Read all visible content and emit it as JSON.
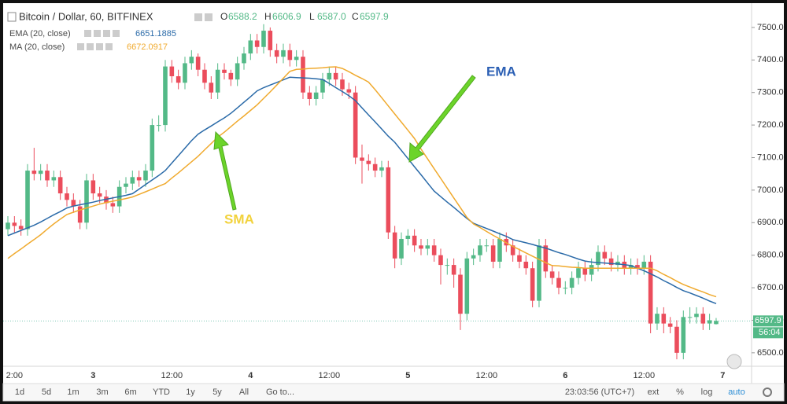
{
  "header": {
    "title": "Bitcoin / Dollar, 60, BITFINEX",
    "ohlc": [
      [
        "O",
        "6588.2"
      ],
      [
        "H",
        "6606.9"
      ],
      [
        "L",
        "6587.0"
      ],
      [
        "C",
        "6597.9"
      ]
    ]
  },
  "chart_data": {
    "type": "candlestick",
    "categories": [
      null,
      "2:00",
      null,
      null,
      null,
      null,
      null,
      null,
      null,
      null,
      null,
      null,
      null,
      "3",
      null,
      null,
      null,
      null,
      null,
      null,
      null,
      null,
      null,
      null,
      null,
      "12:00",
      null,
      null,
      null,
      null,
      null,
      null,
      null,
      null,
      null,
      null,
      null,
      "4",
      null,
      null,
      null,
      null,
      null,
      null,
      null,
      null,
      null,
      null,
      null,
      "12:00",
      null,
      null,
      null,
      null,
      null,
      null,
      null,
      null,
      null,
      null,
      null,
      "5",
      null,
      null,
      null,
      null,
      null,
      null,
      null,
      null,
      null,
      null,
      null,
      "12:00",
      null,
      null,
      null,
      null,
      null,
      null,
      null,
      null,
      null,
      null,
      null,
      "6",
      null,
      null,
      null,
      null,
      null,
      null,
      null,
      null,
      null,
      null,
      null,
      "12:00",
      null,
      null,
      null,
      null,
      null,
      null,
      null,
      null,
      null,
      null,
      null,
      "7"
    ],
    "open": [
      6880,
      6900,
      6890,
      6880,
      7060,
      7050,
      7060,
      7030,
      7040,
      6990,
      6970,
      6950,
      6900,
      7030,
      6990,
      6980,
      6960,
      6950,
      7010,
      7020,
      7040,
      7030,
      7060,
      7200,
      7200,
      7380,
      7350,
      7330,
      7390,
      7410,
      7370,
      7330,
      7300,
      7370,
      7360,
      7340,
      7390,
      7420,
      7460,
      7440,
      7490,
      7430,
      7410,
      7430,
      7400,
      7410,
      7300,
      7280,
      7300,
      7340,
      7360,
      7340,
      7310,
      7300,
      7100,
      7090,
      7080,
      7060,
      7070,
      6870,
      6790,
      6850,
      6860,
      6830,
      6820,
      6830,
      6800,
      6770,
      6770,
      6740,
      6620,
      6790,
      6800,
      6830,
      6830,
      6780,
      6850,
      6830,
      6800,
      6780,
      6760,
      6660,
      6830,
      6750,
      6730,
      6700,
      6700,
      6730,
      6760,
      6740,
      6770,
      6810,
      6790,
      6770,
      6780,
      6760,
      6770,
      6760,
      6780,
      6590,
      6620,
      6590,
      6580,
      6500,
      6610,
      6610,
      6620,
      6590,
      6588.2,
      null
    ],
    "high": [
      6920,
      6920,
      6910,
      7080,
      7130,
      7080,
      7080,
      7060,
      7060,
      7010,
      6990,
      6970,
      7050,
      7050,
      7010,
      7000,
      6980,
      7030,
      7040,
      7060,
      7060,
      7080,
      7220,
      7230,
      7400,
      7400,
      7370,
      7410,
      7430,
      7420,
      7390,
      7350,
      7390,
      7390,
      7370,
      7410,
      7440,
      7480,
      7480,
      7510,
      7500,
      7450,
      7450,
      7450,
      7430,
      7430,
      7320,
      7320,
      7360,
      7380,
      7380,
      7360,
      7330,
      7320,
      7140,
      7110,
      7100,
      7090,
      7090,
      6890,
      6870,
      6880,
      6880,
      6850,
      6850,
      6850,
      6820,
      6790,
      6790,
      6760,
      6810,
      6820,
      6850,
      6850,
      6850,
      6870,
      6870,
      6850,
      6820,
      6800,
      6780,
      6850,
      6850,
      6770,
      6750,
      6720,
      6750,
      6780,
      6780,
      6790,
      6830,
      6830,
      6810,
      6800,
      6800,
      6790,
      6790,
      6800,
      6800,
      6640,
      6640,
      6610,
      6600,
      6630,
      6640,
      6640,
      6640,
      6620,
      6606.9,
      null
    ],
    "low": [
      6860,
      6870,
      6860,
      6860,
      7030,
      7030,
      7010,
      7010,
      6970,
      6950,
      6930,
      6880,
      6880,
      6970,
      6960,
      6940,
      6930,
      6930,
      6990,
      7000,
      7010,
      7010,
      7040,
      7180,
      7180,
      7330,
      7310,
      7310,
      7370,
      7350,
      7310,
      7280,
      7280,
      7340,
      7320,
      7320,
      7370,
      7400,
      7420,
      7420,
      7410,
      7390,
      7390,
      7380,
      7380,
      7280,
      7260,
      7260,
      7280,
      7320,
      7320,
      7290,
      7280,
      7080,
      7020,
      7060,
      7040,
      7040,
      6850,
      6760,
      6770,
      6830,
      6810,
      6800,
      6800,
      6780,
      6710,
      6740,
      6700,
      6570,
      6600,
      6770,
      6780,
      6810,
      6760,
      6760,
      6810,
      6780,
      6760,
      6740,
      6640,
      6640,
      6730,
      6710,
      6680,
      6680,
      6680,
      6710,
      6720,
      6720,
      6750,
      6770,
      6750,
      6750,
      6740,
      6740,
      6740,
      6740,
      6560,
      6570,
      6560,
      6560,
      6480,
      6480,
      6590,
      6590,
      6570,
      6570,
      6587,
      null
    ],
    "close": [
      6900,
      6890,
      6880,
      7060,
      7050,
      7060,
      7030,
      7040,
      6990,
      6970,
      6950,
      6900,
      7030,
      6990,
      6980,
      6960,
      6950,
      7010,
      7020,
      7040,
      7030,
      7060,
      7200,
      7200,
      7380,
      7350,
      7330,
      7390,
      7410,
      7370,
      7330,
      7300,
      7370,
      7360,
      7340,
      7390,
      7420,
      7460,
      7440,
      7490,
      7430,
      7410,
      7430,
      7400,
      7410,
      7300,
      7280,
      7300,
      7340,
      7360,
      7340,
      7310,
      7300,
      7100,
      7090,
      7080,
      7060,
      7070,
      6870,
      6790,
      6850,
      6860,
      6830,
      6820,
      6830,
      6800,
      6770,
      6770,
      6740,
      6620,
      6790,
      6800,
      6830,
      6830,
      6780,
      6850,
      6830,
      6800,
      6780,
      6760,
      6660,
      6830,
      6750,
      6730,
      6700,
      6700,
      6730,
      6760,
      6740,
      6770,
      6810,
      6790,
      6770,
      6780,
      6760,
      6770,
      6760,
      6780,
      6590,
      6620,
      6590,
      6580,
      6500,
      6610,
      6610,
      6620,
      6590,
      6600,
      6597.9,
      null
    ],
    "up_color": "#53b987",
    "down_color": "#eb4d5c",
    "series": [
      {
        "name": "EMA (20, close)",
        "color": "#2a6aa8",
        "values": [
          6860,
          6868,
          6876,
          6884,
          6892,
          6902,
          6913,
          6924,
          6934,
          6945,
          6951,
          6955,
          6959,
          6963,
          6968,
          6972,
          6976,
          6980,
          6984,
          6989,
          7003,
          7017,
          7031,
          7045,
          7060,
          7083,
          7106,
          7129,
          7152,
          7172,
          7185,
          7197,
          7210,
          7222,
          7236,
          7253,
          7270,
          7287,
          7305,
          7315,
          7323,
          7331,
          7339,
          7347,
          7346,
          7345,
          7344,
          7342,
          7340,
          7328,
          7315,
          7303,
          7290,
          7275,
          7253,
          7231,
          7210,
          7188,
          7166,
          7147,
          7122,
          7097,
          7072,
          7047,
          7022,
          6997,
          6980,
          6963,
          6947,
          6930,
          6913,
          6898,
          6890,
          6882,
          6874,
          6866,
          6858,
          6848,
          6843,
          6838,
          6833,
          6827,
          6822,
          6815,
          6808,
          6802,
          6795,
          6788,
          6782,
          6779,
          6777,
          6776,
          6774,
          6773,
          6771,
          6768,
          6760,
          6752,
          6743,
          6733,
          6722,
          6712,
          6701,
          6691,
          6684,
          6676,
          6668,
          6659,
          6651.1885,
          null
        ]
      },
      {
        "name": "MA (20, close)",
        "color": "#f0aa2e",
        "values": [
          6790,
          6805,
          6819,
          6834,
          6848,
          6863,
          6880,
          6896,
          6911,
          6925,
          6932,
          6939,
          6945,
          6951,
          6957,
          6962,
          6966,
          6970,
          6974,
          6979,
          6987,
          6995,
          7003,
          7012,
          7020,
          7037,
          7053,
          7070,
          7087,
          7104,
          7124,
          7143,
          7163,
          7178,
          7195,
          7212,
          7228,
          7245,
          7262,
          7282,
          7302,
          7323,
          7344,
          7365,
          7371,
          7372,
          7374,
          7375,
          7376,
          7378,
          7379,
          7374,
          7364,
          7353,
          7343,
          7332,
          7309,
          7284,
          7259,
          7234,
          7209,
          7184,
          7159,
          7126,
          7096,
          7066,
          7036,
          7006,
          6976,
          6946,
          6916,
          6896,
          6885,
          6873,
          6861,
          6850,
          6838,
          6827,
          6817,
          6807,
          6797,
          6787,
          6777,
          6768,
          6767,
          6765,
          6763,
          6762,
          6760,
          6760,
          6760,
          6760,
          6760,
          6760,
          6760,
          6760,
          6760,
          6760,
          6760,
          6752,
          6741,
          6731,
          6720,
          6710,
          6702,
          6694,
          6687,
          6679,
          6672.0917,
          null
        ]
      }
    ],
    "ylim": [
      6461,
      7565
    ],
    "yticks": [
      {
        "value": 6500,
        "label": "6500.0"
      },
      {
        "value": 6600,
        "label": "6600.0"
      },
      {
        "value": 6700,
        "label": "6700.0"
      },
      {
        "value": 6800,
        "label": "6800.0"
      },
      {
        "value": 6900,
        "label": "6900.0"
      },
      {
        "value": 7000,
        "label": "7000.0"
      },
      {
        "value": 7100,
        "label": "7100.0"
      },
      {
        "value": 7200,
        "label": "7200.0"
      },
      {
        "value": 7300,
        "label": "7300.0"
      },
      {
        "value": 7400,
        "label": "7400.0"
      },
      {
        "value": 7500,
        "label": "7500.0"
      }
    ],
    "annotations": [
      {
        "text": "EMA",
        "color": "#2b5fb4"
      },
      {
        "text": "SMA",
        "color": "#f2d23c"
      }
    ],
    "countdown": "56:04"
  },
  "toolbar": {
    "ranges": [
      "1d",
      "5d",
      "1m",
      "3m",
      "6m",
      "YTD",
      "1y",
      "5y",
      "All",
      "Go to..."
    ],
    "clock": "23:03:56 (UTC+7)",
    "options": [
      "ext",
      "%",
      "log",
      "auto"
    ]
  }
}
